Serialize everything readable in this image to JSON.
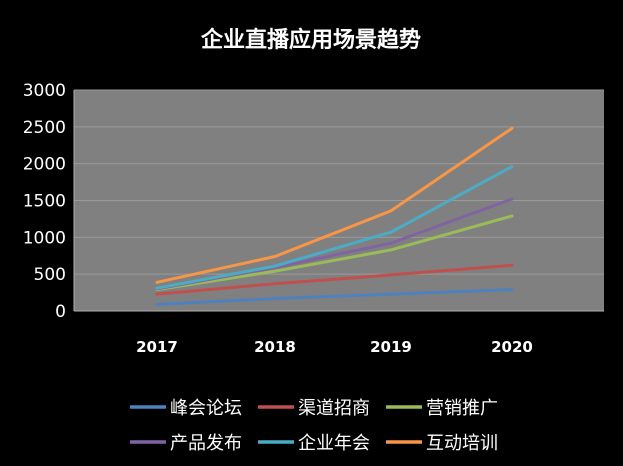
{
  "chart_data": {
    "type": "line",
    "title": "企业直播应用场景趋势",
    "xlabel": "",
    "ylabel": "",
    "categories": [
      "2017",
      "2018",
      "2019",
      "2020"
    ],
    "ylim": [
      0,
      3000
    ],
    "yticks": [
      0,
      500,
      1000,
      1500,
      2000,
      2500,
      3000
    ],
    "grid": true,
    "legend_position": "bottom",
    "series": [
      {
        "name": "峰会论坛",
        "color": "#4F81BD",
        "values": [
          90,
          170,
          230,
          290
        ]
      },
      {
        "name": "渠道招商",
        "color": "#C0504D",
        "values": [
          230,
          370,
          490,
          620
        ]
      },
      {
        "name": "营销推广",
        "color": "#9BBB59",
        "values": [
          290,
          540,
          830,
          1290
        ]
      },
      {
        "name": "产品发布",
        "color": "#8064A2",
        "values": [
          300,
          590,
          920,
          1520
        ]
      },
      {
        "name": "企业年会",
        "color": "#4BACC6",
        "values": [
          310,
          610,
          1070,
          1960
        ]
      },
      {
        "name": "互动培训",
        "color": "#F79646",
        "values": [
          390,
          740,
          1360,
          2480
        ]
      }
    ]
  },
  "colors": {
    "background": "#000000",
    "plot_area": "#808080",
    "gridline": "#9a9a9a",
    "text": "#ffffff"
  }
}
